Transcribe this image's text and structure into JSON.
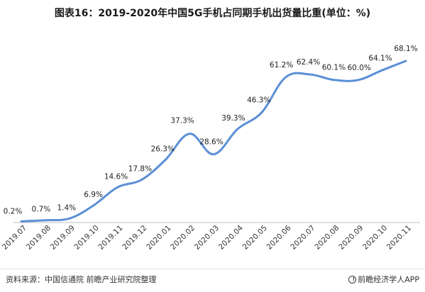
{
  "chart_data": {
    "type": "line",
    "title": "图表16：2019-2020年中国5G手机占同期手机出货量比重(单位：%)",
    "categories": [
      "2019.07",
      "2019.08",
      "2019.09",
      "2019.10",
      "2019.11",
      "2019.12",
      "2020.01",
      "2020.02",
      "2020.03",
      "2020.04",
      "2020.05",
      "2020.06",
      "2020.07",
      "2020.08",
      "2020.09",
      "2020.10",
      "2020.11"
    ],
    "series": [
      {
        "values": [
          0.2,
          0.7,
          1.4,
          6.9,
          14.6,
          17.8,
          26.3,
          37.3,
          28.6,
          39.3,
          46.3,
          61.2,
          62.4,
          60.1,
          60.0,
          64.1,
          68.1
        ],
        "labels": [
          "0.2%",
          "0.7%",
          "1.4%",
          "6.9%",
          "14.6%",
          "17.8%",
          "26.3%",
          "37.3%",
          "28.6%",
          "39.3%",
          "46.3%",
          "61.2%",
          "62.4%",
          "60.1%",
          "60.0%",
          "64.1%",
          "68.1%"
        ]
      }
    ],
    "ylim": [
      0,
      70
    ],
    "grid": false,
    "legend": "none",
    "line_color": "#5b8fd6"
  },
  "footer": {
    "source": "资料来源：中国信通院 前瞻产业研究院整理",
    "brand": "前瞻经济学人APP"
  }
}
